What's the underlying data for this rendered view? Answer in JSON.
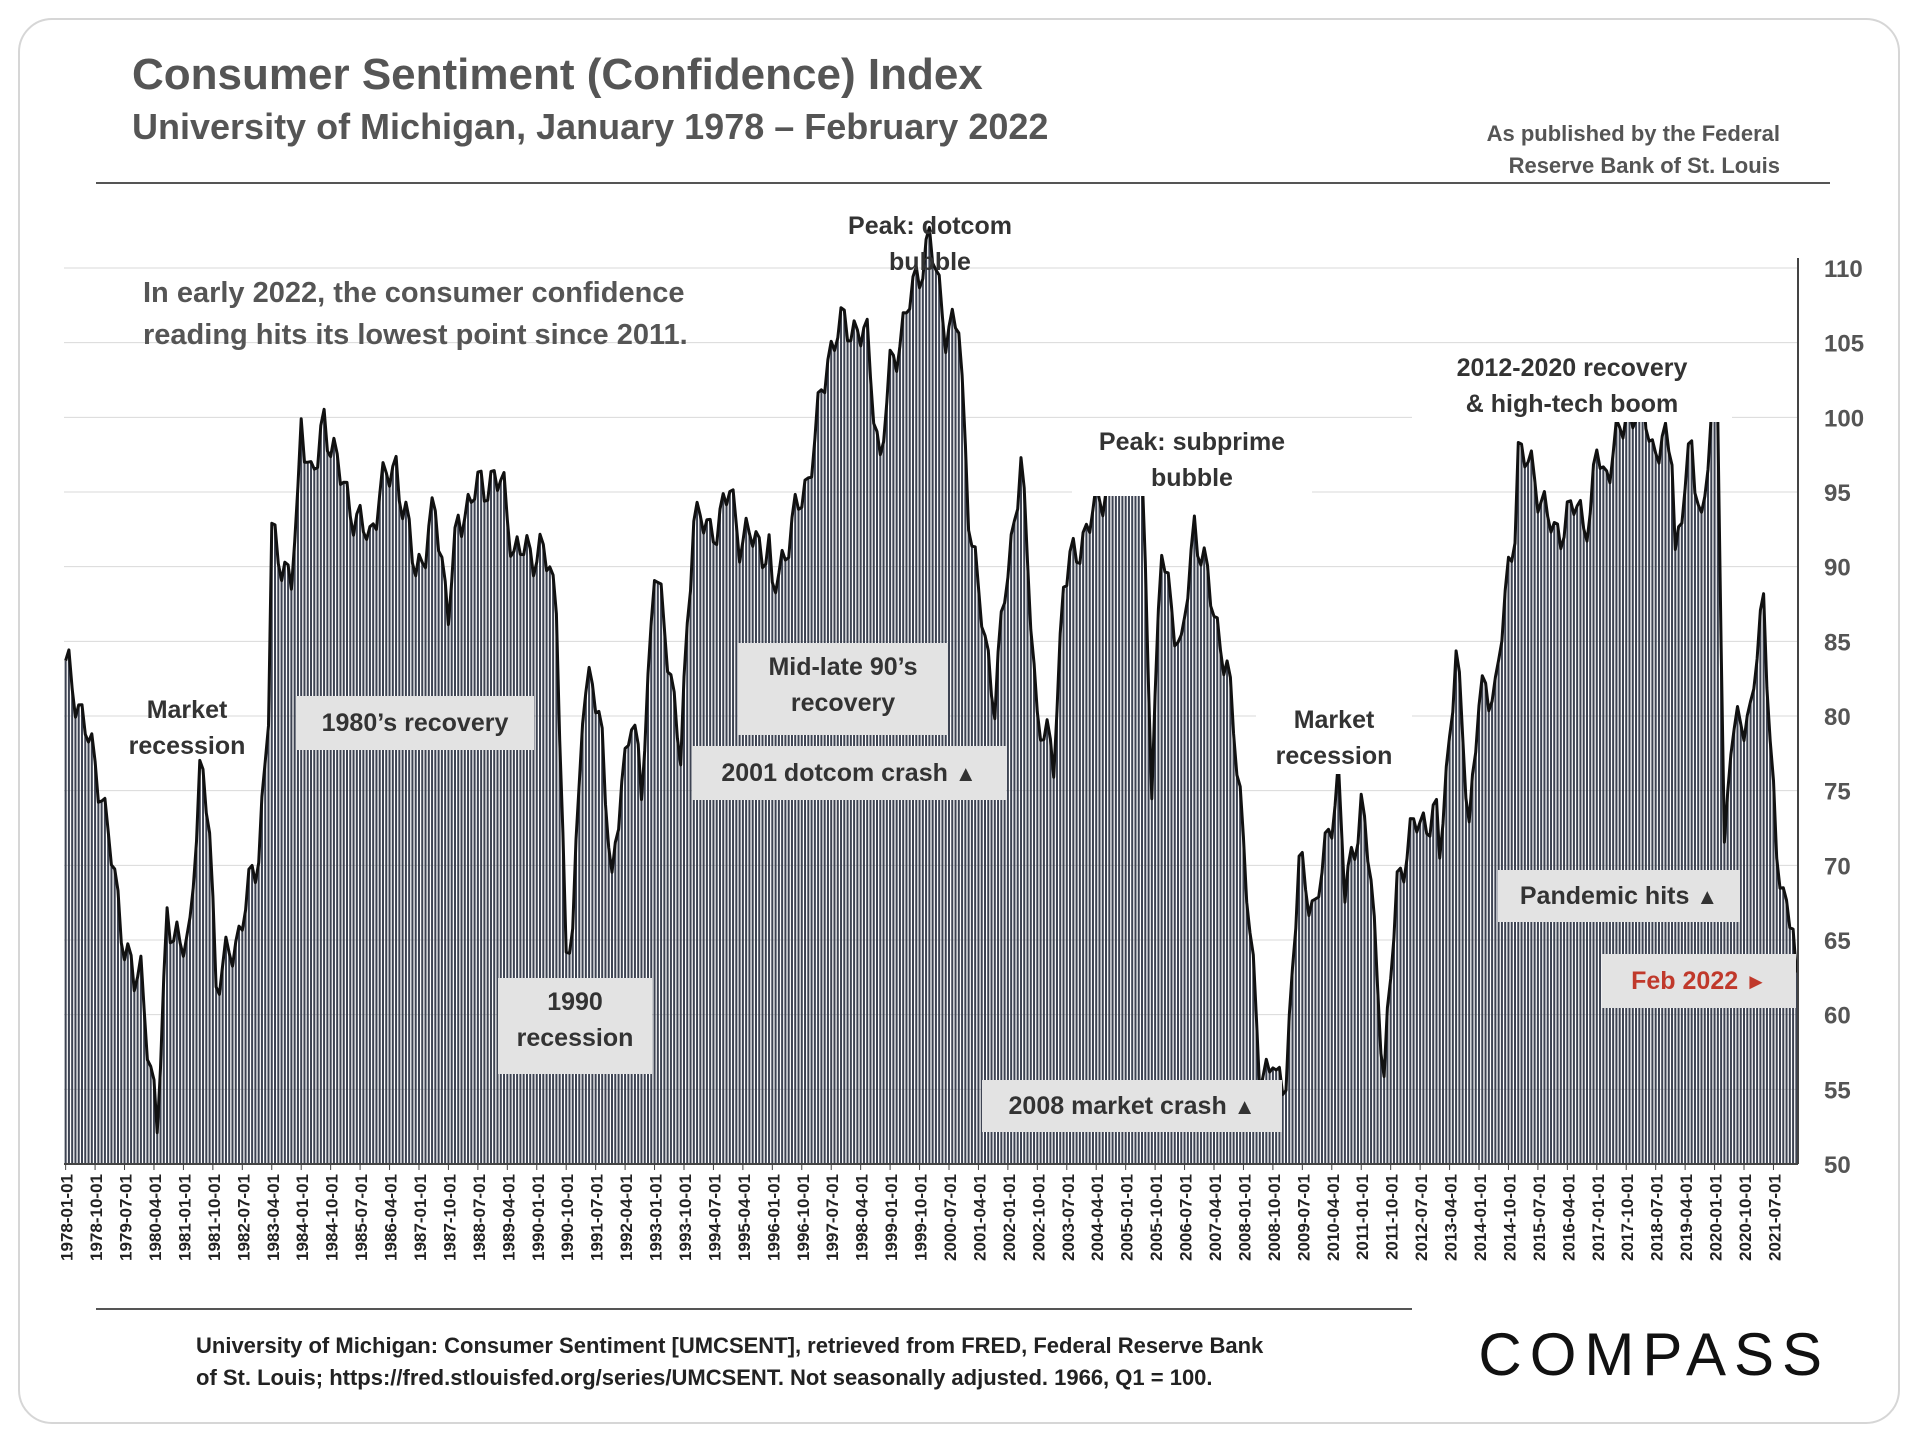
{
  "header": {
    "title": "Consumer Sentiment (Confidence) Index",
    "subtitle": "University of Michigan, January 1978 – February 2022",
    "publisher_note_line1": "As published by the Federal",
    "publisher_note_line2": "Reserve Bank of St. Louis"
  },
  "note": {
    "line1": "In early 2022, the consumer confidence",
    "line2": "reading hits its lowest point since 2011."
  },
  "annotations": {
    "market_recession_1": [
      "Market",
      "recession"
    ],
    "recovery_80s": "1980’s recovery",
    "recession_1990": [
      "1990",
      "recession"
    ],
    "recovery_90s": [
      "Mid-late 90’s",
      "recovery"
    ],
    "dotcom_crash": "2001 dotcom crash",
    "peak_dotcom": [
      "Peak: dotcom",
      "bubble"
    ],
    "peak_subprime": [
      "Peak: subprime",
      "bubble"
    ],
    "market_recession_2": [
      "Market",
      "recession"
    ],
    "market_crash_2008": "2008 market crash",
    "recovery_2012": [
      "2012-2020 recovery",
      "& high-tech boom"
    ],
    "pandemic": "Pandemic hits",
    "feb2022": "Feb 2022",
    "up_arrow": "▲",
    "right_arrow": "►"
  },
  "footer": {
    "line1": "University of Michigan: Consumer Sentiment [UMCSENT], retrieved from FRED, Federal Reserve Bank",
    "line2": "of St. Louis; https://fred.stlouisfed.org/series/UMCSENT. Not seasonally adjusted. 1966, Q1 = 100."
  },
  "logo": "COMPASS",
  "colors": {
    "bar": "#3d4352",
    "line": "#111111",
    "text": "#555555",
    "label_box": "#e3e3e3",
    "accent_red": "#c0392b"
  },
  "chart_data": {
    "type": "bar",
    "title": "Consumer Sentiment (Confidence) Index",
    "subtitle": "University of Michigan, January 1978 – February 2022",
    "frequency": "monthly",
    "x_start": "1978-01",
    "x_end": "2022-02",
    "ylim": [
      50,
      110
    ],
    "yticks": [
      50,
      55,
      60,
      65,
      70,
      75,
      80,
      85,
      90,
      95,
      100,
      105,
      110
    ],
    "y_axis_side": "right",
    "grid": true,
    "xtick_labels": [
      "1978-01-01",
      "1978-10-01",
      "1979-07-01",
      "1980-04-01",
      "1981-01-01",
      "1981-10-01",
      "1982-07-01",
      "1983-04-01",
      "1984-01-01",
      "1984-10-01",
      "1985-07-01",
      "1986-04-01",
      "1987-01-01",
      "1987-10-01",
      "1988-07-01",
      "1989-04-01",
      "1990-01-01",
      "1990-10-01",
      "1991-07-01",
      "1992-04-01",
      "1993-01-01",
      "1993-10-01",
      "1994-07-01",
      "1995-04-01",
      "1996-01-01",
      "1996-10-01",
      "1997-07-01",
      "1998-04-01",
      "1999-01-01",
      "1999-10-01",
      "2000-07-01",
      "2001-04-01",
      "2002-01-01",
      "2002-10-01",
      "2003-07-01",
      "2004-04-01",
      "2005-01-01",
      "2005-10-01",
      "2006-07-01",
      "2007-04-01",
      "2008-01-01",
      "2008-10-01",
      "2009-07-01",
      "2010-04-01",
      "2011-01-01",
      "2011-10-01",
      "2012-07-01",
      "2013-04-01",
      "2014-01-01",
      "2014-10-01",
      "2015-07-01",
      "2016-04-01",
      "2017-01-01",
      "2017-10-01",
      "2018-07-01",
      "2019-04-01",
      "2020-01-01",
      "2020-10-01",
      "2021-07-01"
    ],
    "series": [
      {
        "name": "UMCSENT",
        "anchors": [
          [
            "1978-01",
            83.7
          ],
          [
            "1978-06",
            80
          ],
          [
            "1978-12",
            75
          ],
          [
            "1979-06",
            66
          ],
          [
            "1979-10",
            62
          ],
          [
            "1979-12",
            63
          ],
          [
            "1980-05",
            52
          ],
          [
            "1980-08",
            67
          ],
          [
            "1980-12",
            64
          ],
          [
            "1981-03",
            66
          ],
          [
            "1981-06",
            76
          ],
          [
            "1981-09",
            73
          ],
          [
            "1981-11",
            62
          ],
          [
            "1982-06",
            65.5
          ],
          [
            "1982-12",
            71
          ],
          [
            "1983-03",
            80
          ],
          [
            "1983-04",
            92
          ],
          [
            "1983-10",
            89
          ],
          [
            "1983-12",
            94
          ],
          [
            "1984-01",
            100
          ],
          [
            "1984-04",
            96
          ],
          [
            "1984-06",
            97
          ],
          [
            "1984-08",
            100
          ],
          [
            "1985-01",
            96
          ],
          [
            "1985-06",
            93
          ],
          [
            "1985-10",
            92
          ],
          [
            "1986-01",
            95
          ],
          [
            "1986-06",
            97
          ],
          [
            "1986-08",
            94
          ],
          [
            "1986-12",
            90
          ],
          [
            "1987-03",
            91
          ],
          [
            "1987-06",
            94
          ],
          [
            "1987-10",
            87
          ],
          [
            "1988-01",
            93
          ],
          [
            "1988-06",
            95
          ],
          [
            "1988-12",
            96
          ],
          [
            "1989-03",
            95
          ],
          [
            "1989-06",
            91
          ],
          [
            "1989-12",
            91
          ],
          [
            "1990-03",
            91
          ],
          [
            "1990-07",
            88
          ],
          [
            "1990-10",
            63
          ],
          [
            "1990-12",
            66
          ],
          [
            "1991-03",
            81
          ],
          [
            "1991-06",
            82
          ],
          [
            "1991-09",
            79
          ],
          [
            "1991-12",
            68
          ],
          [
            "1992-03",
            76
          ],
          [
            "1992-06",
            80
          ],
          [
            "1992-09",
            75
          ],
          [
            "1993-01",
            90
          ],
          [
            "1993-06",
            83
          ],
          [
            "1993-09",
            77
          ],
          [
            "1994-01",
            94
          ],
          [
            "1994-06",
            92
          ],
          [
            "1994-12",
            95
          ],
          [
            "1995-03",
            92
          ],
          [
            "1995-06",
            92
          ],
          [
            "1995-12",
            91
          ],
          [
            "1996-01",
            88
          ],
          [
            "1996-06",
            92
          ],
          [
            "1996-12",
            96
          ],
          [
            "1997-06",
            104
          ],
          [
            "1997-09",
            106
          ],
          [
            "1998-03",
            106
          ],
          [
            "1998-06",
            105
          ],
          [
            "1998-10",
            97
          ],
          [
            "1999-01",
            103
          ],
          [
            "1999-06",
            107
          ],
          [
            "2000-01",
            112
          ],
          [
            "2000-06",
            106
          ],
          [
            "2000-10",
            106
          ],
          [
            "2001-01",
            94
          ],
          [
            "2001-04",
            88
          ],
          [
            "2001-09",
            81
          ],
          [
            "2001-12",
            88
          ],
          [
            "2002-05",
            97
          ],
          [
            "2002-10",
            80
          ],
          [
            "2003-03",
            77
          ],
          [
            "2003-06",
            89
          ],
          [
            "2003-12",
            92
          ],
          [
            "2004-06",
            95
          ],
          [
            "2004-12",
            97
          ],
          [
            "2005-06",
            96
          ],
          [
            "2005-09",
            76
          ],
          [
            "2005-12",
            91
          ],
          [
            "2006-06",
            84
          ],
          [
            "2006-10",
            93
          ],
          [
            "2007-03",
            88
          ],
          [
            "2007-08",
            83
          ],
          [
            "2007-12",
            75
          ],
          [
            "2008-06",
            56
          ],
          [
            "2008-10",
            57
          ],
          [
            "2008-11",
            55
          ],
          [
            "2009-02",
            56
          ],
          [
            "2009-06",
            70
          ],
          [
            "2009-11",
            67
          ],
          [
            "2010-06",
            76
          ],
          [
            "2010-08",
            68
          ],
          [
            "2011-01",
            74
          ],
          [
            "2011-04",
            69
          ],
          [
            "2011-08",
            55.7
          ],
          [
            "2011-12",
            69
          ],
          [
            "2012-06",
            73
          ],
          [
            "2012-12",
            73
          ],
          [
            "2013-01",
            71
          ],
          [
            "2013-06",
            84
          ],
          [
            "2013-10",
            73
          ],
          [
            "2014-01",
            81
          ],
          [
            "2014-06",
            82
          ],
          [
            "2014-12",
            93
          ],
          [
            "2015-01",
            98
          ],
          [
            "2015-06",
            96
          ],
          [
            "2015-12",
            92
          ],
          [
            "2016-06",
            94
          ],
          [
            "2016-11",
            93
          ],
          [
            "2017-01",
            98
          ],
          [
            "2017-03",
            96
          ],
          [
            "2017-10",
            100
          ],
          [
            "2018-03",
            101
          ],
          [
            "2018-06",
            98
          ],
          [
            "2018-12",
            98
          ],
          [
            "2019-01",
            91
          ],
          [
            "2019-06",
            98
          ],
          [
            "2019-09",
            93
          ],
          [
            "2019-12",
            99
          ],
          [
            "2020-02",
            101
          ],
          [
            "2020-04",
            71
          ],
          [
            "2020-06",
            78
          ],
          [
            "2020-09",
            80
          ],
          [
            "2020-12",
            80
          ],
          [
            "2021-04",
            88
          ],
          [
            "2021-08",
            70
          ],
          [
            "2021-11",
            67
          ],
          [
            "2022-01",
            67
          ],
          [
            "2022-02",
            62.8
          ]
        ]
      }
    ]
  }
}
